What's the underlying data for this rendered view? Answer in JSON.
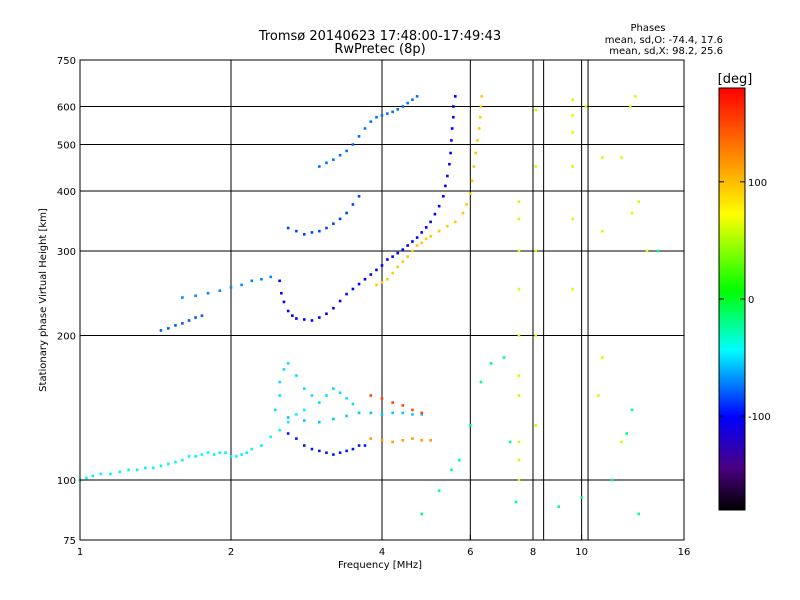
{
  "chart_data": {
    "type": "scatter",
    "title": "Tromsø 20140623 17:48:00-17:49:43",
    "subtitle": "RwPretec (8p)",
    "xlabel": "Frequency [MHz]",
    "ylabel": "Stationary phase Virtual Height [km]",
    "x_scale": "log",
    "y_scale": "log",
    "xlim": [
      1,
      16
    ],
    "ylim": [
      75,
      750
    ],
    "x_ticks": [
      1,
      2,
      4,
      6,
      8,
      10,
      16
    ],
    "x_tick_labels": [
      "1",
      "2",
      "4",
      "6",
      "8",
      "10",
      "16"
    ],
    "y_ticks": [
      75,
      100,
      200,
      300,
      400,
      500,
      600,
      750
    ],
    "y_tick_labels": [
      "75",
      "100",
      "200",
      "300",
      "400",
      "500",
      "600",
      "750"
    ],
    "grid": true,
    "stats": {
      "heading": "Phases",
      "line1": "mean, sd,O: -74.4, 17.6",
      "line2": "mean, sd,X:  98.2, 25.6"
    },
    "colorbar": {
      "label": "[deg]",
      "range": [
        -180,
        180
      ],
      "ticks": [
        100,
        0,
        -100
      ],
      "tick_labels": [
        "100",
        "0",
        "-100"
      ]
    },
    "series": [
      {
        "points": [
          [
            1.0,
            100
          ],
          [
            1.03,
            101
          ],
          [
            1.06,
            102
          ],
          [
            1.1,
            103
          ],
          [
            1.15,
            103
          ],
          [
            1.2,
            104
          ],
          [
            1.25,
            105
          ],
          [
            1.3,
            105
          ],
          [
            1.35,
            106
          ],
          [
            1.4,
            106
          ],
          [
            1.45,
            107
          ],
          [
            1.5,
            108
          ],
          [
            1.55,
            109
          ],
          [
            1.6,
            110
          ],
          [
            1.65,
            112
          ],
          [
            1.7,
            112
          ],
          [
            1.75,
            113
          ],
          [
            1.8,
            114
          ],
          [
            1.85,
            113
          ],
          [
            1.9,
            114
          ],
          [
            1.95,
            114
          ],
          [
            2.0,
            112
          ],
          [
            2.05,
            112
          ],
          [
            2.1,
            113
          ],
          [
            2.15,
            114
          ],
          [
            2.2,
            116
          ],
          [
            2.3,
            118
          ],
          [
            2.4,
            123
          ],
          [
            2.5,
            127
          ],
          [
            2.6,
            132
          ],
          [
            2.7,
            137
          ],
          [
            2.8,
            140
          ]
        ],
        "phase": -45
      },
      {
        "points": [
          [
            2.45,
            140
          ],
          [
            2.5,
            150
          ],
          [
            2.5,
            160
          ],
          [
            2.55,
            170
          ],
          [
            2.6,
            175
          ],
          [
            2.7,
            165
          ],
          [
            2.8,
            155
          ],
          [
            2.9,
            150
          ],
          [
            3.0,
            145
          ],
          [
            3.1,
            150
          ],
          [
            3.2,
            155
          ],
          [
            3.3,
            152
          ],
          [
            3.4,
            148
          ],
          [
            3.5,
            144
          ]
        ],
        "phase": -50
      },
      {
        "points": [
          [
            2.6,
            125
          ],
          [
            2.7,
            122
          ],
          [
            2.8,
            118
          ],
          [
            2.9,
            116
          ],
          [
            3.0,
            115
          ],
          [
            3.1,
            114
          ],
          [
            3.2,
            113
          ],
          [
            3.3,
            114
          ],
          [
            3.4,
            115
          ],
          [
            3.5,
            116
          ],
          [
            3.6,
            118
          ],
          [
            3.7,
            118
          ]
        ],
        "phase": -95
      },
      {
        "points": [
          [
            2.6,
            135
          ],
          [
            2.8,
            133
          ],
          [
            3.0,
            132
          ],
          [
            3.2,
            134
          ],
          [
            3.4,
            136
          ],
          [
            3.6,
            138
          ],
          [
            3.8,
            138
          ],
          [
            4.0,
            137
          ],
          [
            4.2,
            138
          ],
          [
            4.4,
            138
          ],
          [
            4.6,
            137
          ],
          [
            4.8,
            137
          ]
        ],
        "phase": -55
      },
      {
        "points": [
          [
            2.5,
            260
          ],
          [
            2.52,
            245
          ],
          [
            2.55,
            235
          ],
          [
            2.6,
            225
          ],
          [
            2.65,
            220
          ],
          [
            2.7,
            217
          ],
          [
            2.8,
            216
          ],
          [
            2.9,
            215
          ],
          [
            3.0,
            218
          ],
          [
            3.1,
            222
          ],
          [
            3.2,
            228
          ],
          [
            3.3,
            236
          ],
          [
            3.4,
            244
          ],
          [
            3.5,
            250
          ],
          [
            3.6,
            256
          ],
          [
            3.7,
            262
          ],
          [
            3.8,
            268
          ],
          [
            3.9,
            274
          ],
          [
            4.0,
            280
          ],
          [
            4.1,
            288
          ],
          [
            4.2,
            292
          ],
          [
            4.3,
            297
          ],
          [
            4.4,
            302
          ],
          [
            4.5,
            308
          ],
          [
            4.6,
            314
          ],
          [
            4.7,
            320
          ],
          [
            4.8,
            328
          ],
          [
            4.9,
            336
          ],
          [
            5.0,
            345
          ],
          [
            5.1,
            358
          ],
          [
            5.2,
            372
          ],
          [
            5.3,
            390
          ],
          [
            5.35,
            410
          ],
          [
            5.4,
            430
          ],
          [
            5.45,
            455
          ],
          [
            5.48,
            480
          ],
          [
            5.5,
            510
          ],
          [
            5.52,
            540
          ],
          [
            5.55,
            570
          ],
          [
            5.55,
            600
          ],
          [
            5.6,
            630
          ]
        ],
        "phase": -100
      },
      {
        "points": [
          [
            3.9,
            255
          ],
          [
            4.0,
            258
          ],
          [
            4.1,
            262
          ],
          [
            4.2,
            270
          ],
          [
            4.3,
            278
          ],
          [
            4.4,
            285
          ],
          [
            4.5,
            292
          ],
          [
            4.6,
            300
          ],
          [
            4.7,
            308
          ],
          [
            4.8,
            312
          ],
          [
            4.9,
            318
          ],
          [
            5.0,
            322
          ],
          [
            5.2,
            330
          ],
          [
            5.4,
            338
          ],
          [
            5.6,
            345
          ],
          [
            5.8,
            360
          ],
          [
            5.9,
            375
          ],
          [
            6.0,
            395
          ],
          [
            6.05,
            420
          ],
          [
            6.1,
            450
          ],
          [
            6.15,
            480
          ],
          [
            6.2,
            510
          ],
          [
            6.25,
            540
          ],
          [
            6.28,
            570
          ],
          [
            6.3,
            600
          ],
          [
            6.32,
            630
          ]
        ],
        "phase": 95
      },
      {
        "points": [
          [
            3.8,
            122
          ],
          [
            4.0,
            121
          ],
          [
            4.2,
            120
          ],
          [
            4.4,
            121
          ],
          [
            4.6,
            122
          ],
          [
            4.8,
            121
          ],
          [
            5.0,
            121
          ]
        ],
        "phase": 115
      },
      {
        "points": [
          [
            3.8,
            150
          ],
          [
            4.0,
            148
          ],
          [
            4.2,
            145
          ],
          [
            4.4,
            143
          ],
          [
            4.6,
            140
          ],
          [
            4.8,
            138
          ]
        ],
        "phase": 150
      },
      {
        "points": [
          [
            3.0,
            450
          ],
          [
            3.1,
            458
          ],
          [
            3.2,
            465
          ],
          [
            3.3,
            475
          ],
          [
            3.4,
            485
          ],
          [
            3.5,
            500
          ],
          [
            3.6,
            520
          ],
          [
            3.7,
            540
          ],
          [
            3.8,
            558
          ],
          [
            3.9,
            570
          ],
          [
            4.0,
            575
          ],
          [
            4.1,
            580
          ],
          [
            4.2,
            585
          ],
          [
            4.3,
            592
          ],
          [
            4.4,
            600
          ],
          [
            4.5,
            610
          ],
          [
            4.6,
            620
          ],
          [
            4.7,
            630
          ]
        ],
        "phase": -75
      },
      {
        "points": [
          [
            2.6,
            335
          ],
          [
            2.7,
            330
          ],
          [
            2.8,
            325
          ],
          [
            2.9,
            328
          ],
          [
            3.0,
            330
          ],
          [
            3.1,
            335
          ],
          [
            3.2,
            342
          ],
          [
            3.3,
            350
          ],
          [
            3.4,
            360
          ],
          [
            3.5,
            375
          ],
          [
            3.6,
            390
          ]
        ],
        "phase": -85
      },
      {
        "points": [
          [
            1.6,
            240
          ],
          [
            1.7,
            242
          ],
          [
            1.8,
            245
          ],
          [
            1.9,
            248
          ],
          [
            2.0,
            252
          ],
          [
            2.1,
            255
          ],
          [
            2.2,
            260
          ],
          [
            2.3,
            262
          ],
          [
            2.4,
            265
          ]
        ],
        "phase": -70
      },
      {
        "points": [
          [
            1.45,
            205
          ],
          [
            1.5,
            207
          ],
          [
            1.55,
            210
          ],
          [
            1.6,
            212
          ],
          [
            1.65,
            215
          ],
          [
            1.7,
            218
          ],
          [
            1.75,
            220
          ]
        ],
        "phase": -80
      },
      {
        "points": [
          [
            7.5,
            100
          ],
          [
            7.5,
            110
          ],
          [
            7.5,
            120
          ],
          [
            7.5,
            150
          ],
          [
            7.5,
            165
          ],
          [
            7.5,
            200
          ],
          [
            7.5,
            250
          ],
          [
            7.5,
            300
          ],
          [
            7.5,
            350
          ],
          [
            7.5,
            380
          ],
          [
            8.1,
            130
          ],
          [
            8.1,
            200
          ],
          [
            8.1,
            300
          ],
          [
            8.1,
            450
          ],
          [
            8.1,
            590
          ],
          [
            9.6,
            350
          ],
          [
            9.6,
            450
          ],
          [
            9.6,
            530
          ],
          [
            9.6,
            575
          ],
          [
            9.6,
            620
          ],
          [
            9.6,
            250
          ],
          [
            10.2,
            600
          ],
          [
            10.8,
            150
          ],
          [
            11.0,
            180
          ],
          [
            11.0,
            330
          ],
          [
            12.0,
            120
          ],
          [
            12.5,
            600
          ],
          [
            12.8,
            630
          ],
          [
            13.0,
            380
          ],
          [
            13.5,
            300
          ],
          [
            12.6,
            360
          ],
          [
            12.0,
            470
          ],
          [
            11.0,
            470
          ]
        ],
        "phase": 60
      },
      {
        "points": [
          [
            4.8,
            85
          ],
          [
            5.2,
            95
          ],
          [
            5.5,
            105
          ],
          [
            5.7,
            110
          ],
          [
            6.0,
            130
          ],
          [
            6.3,
            160
          ],
          [
            6.6,
            175
          ],
          [
            7.0,
            180
          ],
          [
            7.2,
            120
          ],
          [
            7.4,
            90
          ],
          [
            9.0,
            88
          ],
          [
            10.0,
            92
          ],
          [
            11.5,
            100
          ],
          [
            12.3,
            125
          ],
          [
            13.0,
            85
          ],
          [
            12.6,
            140
          ],
          [
            14.2,
            300
          ]
        ],
        "phase": -20
      }
    ]
  }
}
